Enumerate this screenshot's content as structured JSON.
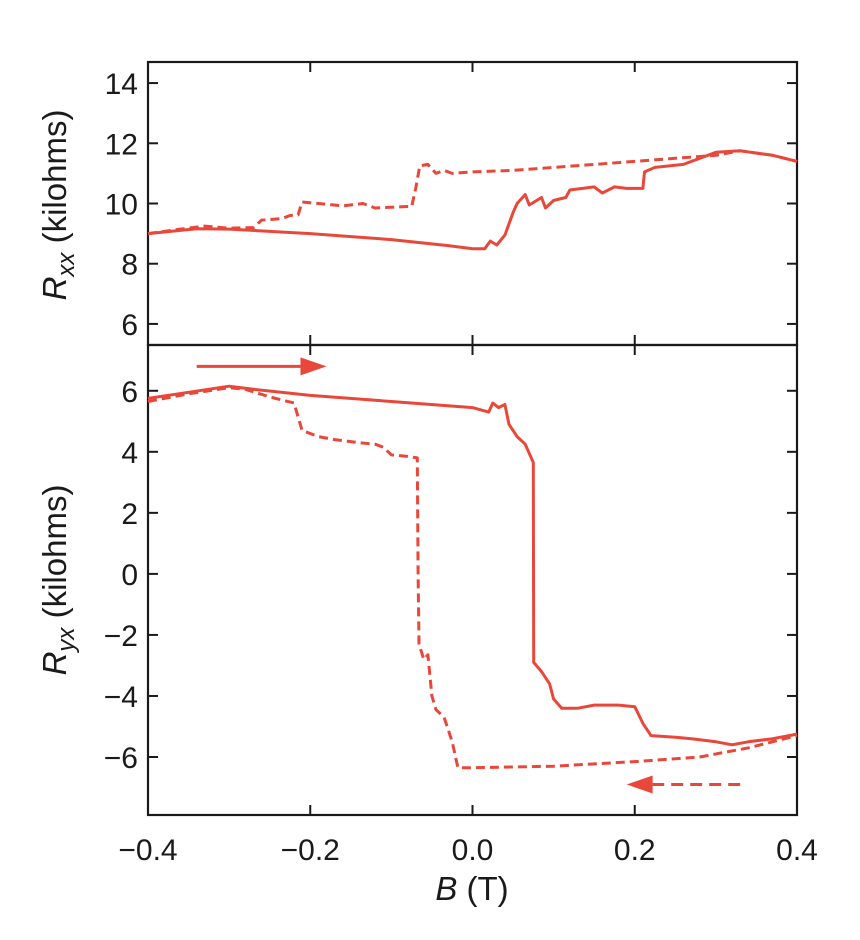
{
  "chart_data": {
    "type": "line",
    "line_color": "#e8473a",
    "shared_x": {
      "label_var": "B",
      "label_unit": " (T)",
      "xlim": [
        -0.4,
        0.4
      ],
      "ticks": [
        -0.4,
        -0.2,
        0.0,
        0.2,
        0.4
      ],
      "tick_labels": [
        "−0.4",
        "−0.2",
        "0.0",
        "0.2",
        "0.4"
      ]
    },
    "panels": [
      {
        "id": "top",
        "ylabel_var": "R",
        "ylabel_sub": "xx",
        "ylabel_unit": " (kilohms)",
        "ylim": [
          5.3,
          14.7
        ],
        "yticks": [
          6,
          8,
          10,
          12,
          14
        ],
        "ytick_labels": [
          "6",
          "8",
          "10",
          "12",
          "14"
        ],
        "series": [
          {
            "style": "solid",
            "points": [
              [
                -0.4,
                9.0
              ],
              [
                -0.34,
                9.16
              ],
              [
                -0.3,
                9.15
              ],
              [
                -0.2,
                9.0
              ],
              [
                -0.1,
                8.8
              ],
              [
                -0.03,
                8.6
              ],
              [
                0.0,
                8.5
              ],
              [
                0.015,
                8.5
              ],
              [
                0.022,
                8.75
              ],
              [
                0.03,
                8.62
              ],
              [
                0.04,
                8.95
              ],
              [
                0.05,
                9.7
              ],
              [
                0.055,
                10.0
              ],
              [
                0.065,
                10.3
              ],
              [
                0.07,
                9.95
              ],
              [
                0.085,
                10.2
              ],
              [
                0.09,
                9.85
              ],
              [
                0.1,
                10.1
              ],
              [
                0.115,
                10.2
              ],
              [
                0.12,
                10.45
              ],
              [
                0.15,
                10.55
              ],
              [
                0.16,
                10.35
              ],
              [
                0.175,
                10.55
              ],
              [
                0.19,
                10.5
              ],
              [
                0.2,
                10.5
              ],
              [
                0.21,
                10.5
              ],
              [
                0.212,
                11.05
              ],
              [
                0.225,
                11.2
              ],
              [
                0.26,
                11.3
              ],
              [
                0.3,
                11.7
              ],
              [
                0.33,
                11.75
              ],
              [
                0.37,
                11.6
              ],
              [
                0.4,
                11.4
              ]
            ]
          },
          {
            "style": "dashed",
            "points": [
              [
                -0.4,
                9.0
              ],
              [
                -0.36,
                9.15
              ],
              [
                -0.33,
                9.25
              ],
              [
                -0.3,
                9.18
              ],
              [
                -0.27,
                9.2
              ],
              [
                -0.26,
                9.45
              ],
              [
                -0.235,
                9.5
              ],
              [
                -0.225,
                9.6
              ],
              [
                -0.215,
                9.62
              ],
              [
                -0.21,
                10.05
              ],
              [
                -0.19,
                10.0
              ],
              [
                -0.16,
                9.92
              ],
              [
                -0.135,
                10.0
              ],
              [
                -0.12,
                9.85
              ],
              [
                -0.08,
                9.9
              ],
              [
                -0.075,
                9.9
              ],
              [
                -0.07,
                10.5
              ],
              [
                -0.065,
                11.25
              ],
              [
                -0.055,
                11.3
              ],
              [
                -0.045,
                11.0
              ],
              [
                -0.035,
                11.1
              ],
              [
                -0.025,
                11.0
              ],
              [
                0.0,
                11.05
              ],
              [
                0.05,
                11.1
              ],
              [
                0.1,
                11.2
              ],
              [
                0.15,
                11.3
              ],
              [
                0.2,
                11.4
              ],
              [
                0.25,
                11.5
              ],
              [
                0.3,
                11.6
              ],
              [
                0.33,
                11.75
              ],
              [
                0.37,
                11.6
              ],
              [
                0.4,
                11.4
              ]
            ]
          }
        ]
      },
      {
        "id": "bottom",
        "ylabel_var": "R",
        "ylabel_sub": "yx",
        "ylabel_unit": " (kilohms)",
        "ylim": [
          -7.9,
          7.5
        ],
        "yticks": [
          -6,
          -4,
          -2,
          0,
          2,
          4,
          6
        ],
        "ytick_labels": [
          "−6",
          "−4",
          "−2",
          "0",
          "2",
          "4",
          "6"
        ],
        "arrows": [
          {
            "style": "solid",
            "direction": "right",
            "from": [
              -0.34,
              6.8
            ],
            "to": [
              -0.18,
              6.8
            ]
          },
          {
            "style": "dashed",
            "direction": "left",
            "from": [
              0.33,
              -6.9
            ],
            "to": [
              0.19,
              -6.9
            ]
          }
        ],
        "series": [
          {
            "style": "solid",
            "points": [
              [
                -0.4,
                5.75
              ],
              [
                -0.35,
                5.95
              ],
              [
                -0.3,
                6.15
              ],
              [
                -0.27,
                6.05
              ],
              [
                -0.2,
                5.85
              ],
              [
                -0.1,
                5.65
              ],
              [
                0.0,
                5.45
              ],
              [
                0.02,
                5.3
              ],
              [
                0.025,
                5.6
              ],
              [
                0.032,
                5.45
              ],
              [
                0.04,
                5.55
              ],
              [
                0.045,
                4.9
              ],
              [
                0.055,
                4.5
              ],
              [
                0.065,
                4.25
              ],
              [
                0.075,
                3.65
              ],
              [
                0.0755,
                -2.9
              ],
              [
                0.085,
                -3.2
              ],
              [
                0.095,
                -3.6
              ],
              [
                0.1,
                -4.1
              ],
              [
                0.11,
                -4.4
              ],
              [
                0.13,
                -4.4
              ],
              [
                0.15,
                -4.3
              ],
              [
                0.18,
                -4.3
              ],
              [
                0.2,
                -4.35
              ],
              [
                0.21,
                -4.9
              ],
              [
                0.22,
                -5.3
              ],
              [
                0.25,
                -5.35
              ],
              [
                0.27,
                -5.4
              ],
              [
                0.3,
                -5.5
              ],
              [
                0.32,
                -5.6
              ],
              [
                0.34,
                -5.5
              ],
              [
                0.37,
                -5.4
              ],
              [
                0.4,
                -5.25
              ]
            ]
          },
          {
            "style": "dashed",
            "points": [
              [
                -0.4,
                5.65
              ],
              [
                -0.35,
                5.9
              ],
              [
                -0.3,
                6.1
              ],
              [
                -0.28,
                6.05
              ],
              [
                -0.25,
                5.8
              ],
              [
                -0.22,
                5.6
              ],
              [
                -0.21,
                4.7
              ],
              [
                -0.19,
                4.5
              ],
              [
                -0.17,
                4.4
              ],
              [
                -0.14,
                4.3
              ],
              [
                -0.12,
                4.25
              ],
              [
                -0.11,
                4.15
              ],
              [
                -0.1,
                3.9
              ],
              [
                -0.08,
                3.85
              ],
              [
                -0.068,
                3.8
              ],
              [
                -0.067,
                0.0
              ],
              [
                -0.066,
                -2.3
              ],
              [
                -0.06,
                -2.8
              ],
              [
                -0.055,
                -2.65
              ],
              [
                -0.05,
                -4.0
              ],
              [
                -0.045,
                -4.45
              ],
              [
                -0.035,
                -4.7
              ],
              [
                -0.025,
                -5.5
              ],
              [
                -0.018,
                -6.35
              ],
              [
                0.0,
                -6.35
              ],
              [
                0.1,
                -6.3
              ],
              [
                0.2,
                -6.15
              ],
              [
                0.28,
                -6.0
              ],
              [
                0.34,
                -5.7
              ],
              [
                0.4,
                -5.3
              ]
            ]
          }
        ]
      }
    ]
  }
}
